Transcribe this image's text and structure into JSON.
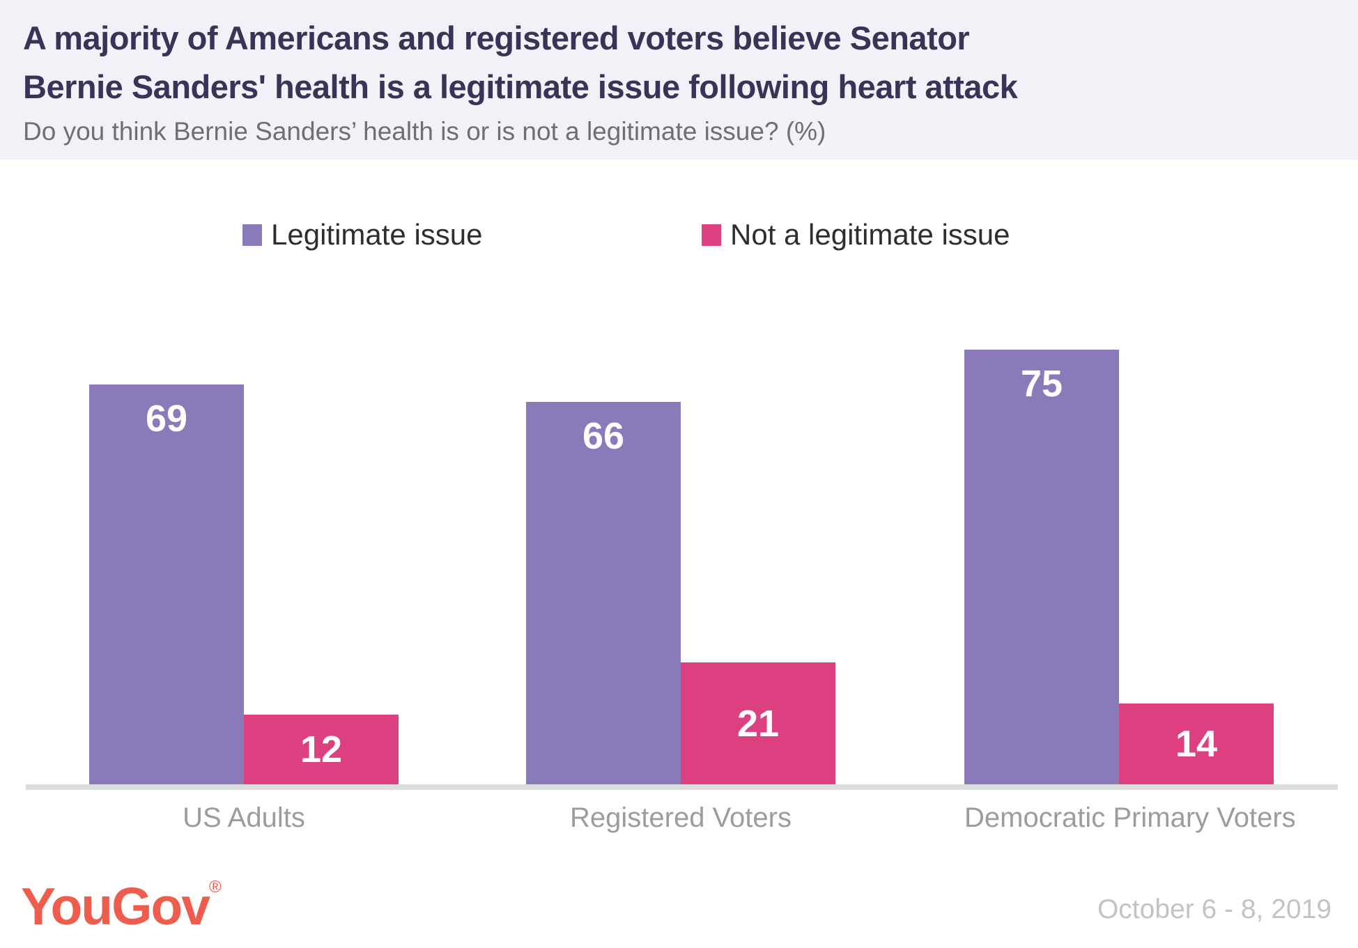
{
  "header": {
    "title_lines": [
      "A majority of Americans and registered voters believe Senator",
      "Bernie Sanders' health is a legitimate issue following heart attack"
    ],
    "subtitle": "Do you think Bernie Sanders’ health is or is not a legitimate issue? (%)"
  },
  "legend": [
    {
      "label": "Legitimate issue",
      "color": "#8a7ab9"
    },
    {
      "label": "Not a legitimate issue",
      "color": "#dd4080"
    }
  ],
  "chart_data": {
    "type": "bar",
    "categories": [
      "US Adults",
      "Registered Voters",
      "Democratic Primary Voters"
    ],
    "series": [
      {
        "name": "Legitimate issue",
        "color": "#8a7ab9",
        "values": [
          69,
          66,
          75
        ]
      },
      {
        "name": "Not a legitimate issue",
        "color": "#dd4080",
        "values": [
          12,
          21,
          14
        ]
      }
    ],
    "value_unit": "%",
    "ylim": [
      0,
      100
    ],
    "grid": false,
    "legend_position": "top",
    "value_labels": "inside-white"
  },
  "footer": {
    "logo": "YouGov",
    "logo_registered": "®",
    "date": "October 6 - 8, 2019"
  },
  "colors": {
    "header_background": "#f2f1f8",
    "title": "#3a3357",
    "subtitle": "#6f6f6f",
    "axis_line": "#dcdcdc",
    "category_label": "#9c9c9c",
    "logo": "#ee5c4d",
    "date": "#c3c3c3",
    "bar_value_text": "#ffffff"
  }
}
